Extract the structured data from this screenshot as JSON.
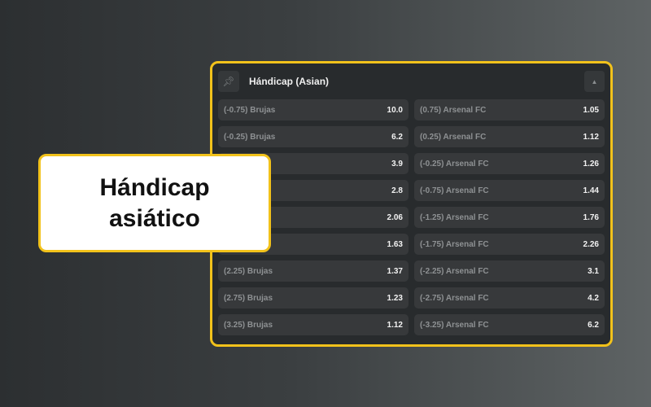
{
  "market": {
    "title": "Hándicap (Asian)",
    "pin_icon": "pin-icon",
    "collapse_icon": "caret-up-icon",
    "rows": [
      {
        "home_label": "(-0.75) Brujas",
        "home_odds": "10.0",
        "away_label": "(0.75) Arsenal FC",
        "away_odds": "1.05"
      },
      {
        "home_label": "(-0.25) Brujas",
        "home_odds": "6.2",
        "away_label": "(0.25) Arsenal FC",
        "away_odds": "1.12"
      },
      {
        "home_label": "",
        "home_odds": "3.9",
        "away_label": "(-0.25) Arsenal FC",
        "away_odds": "1.26"
      },
      {
        "home_label": "",
        "home_odds": "2.8",
        "away_label": "(-0.75) Arsenal FC",
        "away_odds": "1.44"
      },
      {
        "home_label": "",
        "home_odds": "2.06",
        "away_label": "(-1.25) Arsenal FC",
        "away_odds": "1.76"
      },
      {
        "home_label": "",
        "home_odds": "1.63",
        "away_label": "(-1.75) Arsenal FC",
        "away_odds": "2.26"
      },
      {
        "home_label": "(2.25) Brujas",
        "home_odds": "1.37",
        "away_label": "(-2.25) Arsenal FC",
        "away_odds": "3.1"
      },
      {
        "home_label": "(2.75) Brujas",
        "home_odds": "1.23",
        "away_label": "(-2.75) Arsenal FC",
        "away_odds": "4.2"
      },
      {
        "home_label": "(3.25) Brujas",
        "home_odds": "1.12",
        "away_label": "(-3.25) Arsenal FC",
        "away_odds": "6.2"
      }
    ]
  },
  "callout": {
    "line1": "Hándicap",
    "line2": "asiático"
  },
  "colors": {
    "accent": "#f2c21b",
    "card": "#282b2d",
    "row": "#37393b"
  }
}
